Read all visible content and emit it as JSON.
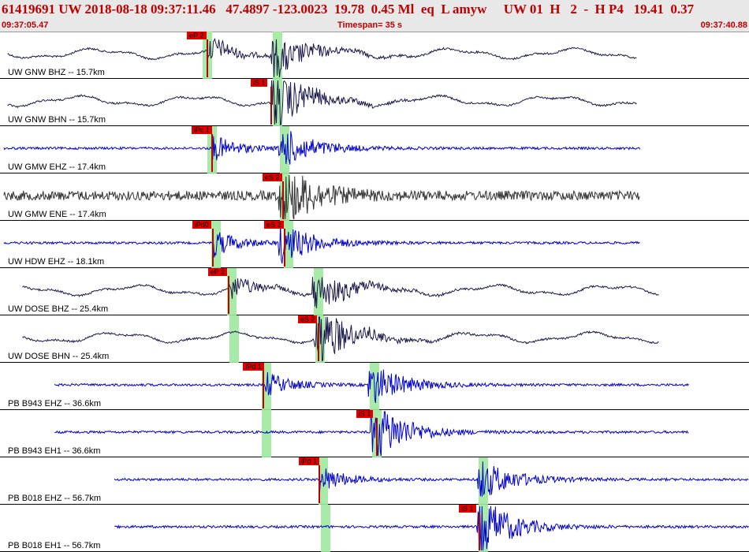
{
  "header": {
    "summary": "61419691 UW 2018-08-18 09:37:11.46   47.4897 -123.0023  19.78  0.45 Ml  eq  L amyw     UW 01  H   2  -  H P4   19.41  0.37",
    "start_time": "09:37:05.47",
    "timespan": "Timespan=  35 s",
    "end_time": "09:37:40.88"
  },
  "colors": {
    "header_bg": "#e8e8e8",
    "header_text": "#c00000",
    "pick_tag": "#e00000",
    "pick_window": "#9fe89f",
    "trace_dark": "#1a1a4a",
    "trace_blue": "#0000cc",
    "trace_gray": "#333333"
  },
  "traces": [
    {
      "label": "UW GNW BHZ -- 15.7km",
      "color": "#1a1a4a",
      "start": 0.01,
      "end": 0.85,
      "style": "long-period",
      "picks": [
        {
          "label": "eP 2",
          "t": 0.277
        }
      ],
      "windows": [
        0.277,
        0.371
      ]
    },
    {
      "label": "UW GNW BHN -- 15.7km",
      "color": "#1a1a4a",
      "start": 0.01,
      "end": 0.85,
      "style": "long-period",
      "picks": [
        {
          "label": "iS 1",
          "t": 0.362
        }
      ],
      "windows": [
        0.371
      ]
    },
    {
      "label": "UW GMW EHZ -- 17.4km",
      "color": "#0000cc",
      "start": 0.005,
      "end": 0.855,
      "style": "short-period",
      "picks": [
        {
          "label": "iPc 1",
          "t": 0.283
        }
      ],
      "windows": [
        0.283,
        0.38
      ]
    },
    {
      "label": "UW GMW ENE -- 17.4km",
      "color": "#333333",
      "start": 0.005,
      "end": 0.855,
      "style": "noise",
      "picks": [
        {
          "label": "eS 2",
          "t": 0.378
        }
      ],
      "windows": [
        0.38
      ]
    },
    {
      "label": "UW HDW EHZ -- 18.1km",
      "color": "#0000cc",
      "start": 0.005,
      "end": 0.855,
      "style": "short-period",
      "picks": [
        {
          "label": "iPd0",
          "t": 0.284
        },
        {
          "label": "eS 2",
          "t": 0.38
        }
      ],
      "windows": [
        0.288,
        0.385
      ]
    },
    {
      "label": "UW DOSE BHZ -- 25.4km",
      "color": "#1a1a4a",
      "start": 0.03,
      "end": 0.88,
      "style": "long-period",
      "picks": [
        {
          "label": "eP 2",
          "t": 0.305
        }
      ],
      "windows": [
        0.309,
        0.425
      ]
    },
    {
      "label": "UW DOSE BHN -- 25.4km",
      "color": "#1a1a4a",
      "start": 0.03,
      "end": 0.88,
      "style": "long-period",
      "picks": [
        {
          "label": "eS 2",
          "t": 0.425
        }
      ],
      "windows": [
        0.313,
        0.427
      ]
    },
    {
      "label": "PB B943 EHZ -- 36.6km",
      "color": "#0000cc",
      "start": 0.073,
      "end": 0.92,
      "style": "short-period",
      "picks": [
        {
          "label": "iPd 1",
          "t": 0.352
        }
      ],
      "windows": [
        0.356,
        0.5
      ]
    },
    {
      "label": "PB B943 EH1 -- 36.6km",
      "color": "#0000cc",
      "start": 0.073,
      "end": 0.92,
      "style": "short-period",
      "picks": [
        {
          "label": "iS 1",
          "t": 0.503
        }
      ],
      "windows": [
        0.356,
        0.503
      ]
    },
    {
      "label": "PB B018 EHZ -- 56.7km",
      "color": "#0000cc",
      "start": 0.153,
      "end": 1.0,
      "style": "short-period",
      "picks": [
        {
          "label": "iPd 1",
          "t": 0.426
        }
      ],
      "windows": [
        0.432,
        0.645
      ]
    },
    {
      "label": "PB B018 EH1 -- 56.7km",
      "color": "#0000cc",
      "start": 0.153,
      "end": 1.0,
      "style": "short-period",
      "picks": [
        {
          "label": "iS 1",
          "t": 0.64
        }
      ],
      "windows": [
        0.435,
        0.645
      ]
    }
  ]
}
